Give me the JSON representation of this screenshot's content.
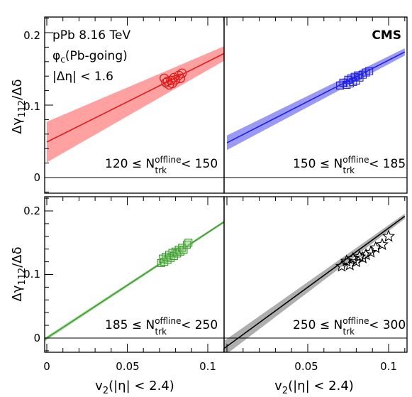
{
  "annotations": {
    "collision": "pPb 8.16 TeV",
    "observable": "φc(Pb-going)",
    "eta_cut": "|Δη| < 1.6",
    "experiment": "CMS"
  },
  "colors": {
    "red": "#e11b1b",
    "blue": "#1f1fe6",
    "green": "#3b9b2a",
    "black": "#000000"
  },
  "chart_data": [
    {
      "type": "scatter",
      "panel": "top-left",
      "label": "120 ≤ N_trk^offline < 150",
      "ylabel": "Δγ112/Δδ",
      "xlim": [
        0,
        0.11
      ],
      "ylim": [
        -0.015,
        0.22
      ],
      "yticks": [
        0,
        0.1,
        0.2
      ],
      "series": [
        {
          "color": "red",
          "marker": "circle",
          "x": [
            0.073,
            0.074,
            0.075,
            0.076,
            0.077,
            0.078,
            0.079,
            0.08,
            0.082,
            0.083,
            0.084
          ],
          "y": [
            0.137,
            0.131,
            0.133,
            0.128,
            0.134,
            0.13,
            0.138,
            0.135,
            0.141,
            0.137,
            0.144
          ]
        }
      ],
      "fit": {
        "intercept": 0.049,
        "slope": 1.11,
        "band_at_zero": 0.028,
        "band_at_max": 0.01
      }
    },
    {
      "type": "scatter",
      "panel": "top-right",
      "label": "150 ≤ N_trk^offline < 185",
      "xlim": [
        0,
        0.11
      ],
      "ylim": [
        -0.015,
        0.22
      ],
      "series": [
        {
          "color": "blue",
          "marker": "square",
          "x": [
            0.07,
            0.072,
            0.074,
            0.075,
            0.076,
            0.077,
            0.078,
            0.079,
            0.08,
            0.081,
            0.082,
            0.084,
            0.086,
            0.088
          ],
          "y": [
            0.127,
            0.131,
            0.128,
            0.135,
            0.13,
            0.137,
            0.132,
            0.139,
            0.134,
            0.141,
            0.138,
            0.142,
            0.145,
            0.147
          ]
        }
      ],
      "fit": {
        "intercept": 0.048,
        "slope": 1.14,
        "band_at_zero": 0.01,
        "band_at_max": 0.005
      }
    },
    {
      "type": "scatter",
      "panel": "bottom-left",
      "label": "185 ≤ N_trk^offline < 250",
      "xlabel": "v2(|η| < 2.4)",
      "ylabel": "Δγ112/Δδ",
      "xlim": [
        -0.004,
        0.11
      ],
      "ylim": [
        -0.03,
        0.22
      ],
      "xticks": [
        0,
        0.05,
        0.1
      ],
      "yticks": [
        0,
        0.1,
        0.2
      ],
      "series": [
        {
          "color": "green",
          "marker": "square",
          "x": [
            0.071,
            0.072,
            0.073,
            0.074,
            0.075,
            0.076,
            0.077,
            0.078,
            0.079,
            0.08,
            0.081,
            0.082,
            0.083,
            0.084,
            0.085,
            0.087,
            0.088
          ],
          "y": [
            0.118,
            0.125,
            0.12,
            0.128,
            0.123,
            0.131,
            0.126,
            0.134,
            0.129,
            0.136,
            0.133,
            0.139,
            0.136,
            0.142,
            0.139,
            0.147,
            0.15
          ]
        }
      ],
      "fit": {
        "intercept": 0.0,
        "slope": 1.66,
        "band_at_zero": 0.003,
        "band_at_max": 0.002
      }
    },
    {
      "type": "scatter",
      "panel": "bottom-right",
      "label": "250 ≤ N_trk^offline < 300",
      "xlabel": "v2(|η| < 2.4)",
      "xlim": [
        -0.004,
        0.11
      ],
      "ylim": [
        -0.03,
        0.22
      ],
      "xticks": [
        0,
        0.05,
        0.1
      ],
      "series": [
        {
          "color": "black",
          "marker": "star",
          "x": [
            0.071,
            0.074,
            0.076,
            0.078,
            0.08,
            0.082,
            0.084,
            0.086,
            0.089,
            0.092,
            0.096,
            0.1
          ],
          "y": [
            0.113,
            0.121,
            0.115,
            0.125,
            0.12,
            0.128,
            0.126,
            0.131,
            0.135,
            0.142,
            0.147,
            0.16
          ]
        }
      ],
      "fit": {
        "intercept": -0.013,
        "slope": 1.86,
        "band_at_zero": 0.012,
        "band_at_max": 0.004
      }
    }
  ]
}
